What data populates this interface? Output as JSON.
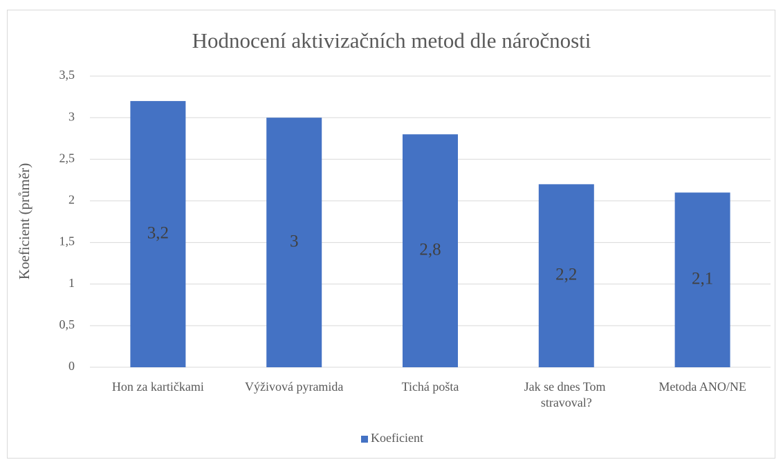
{
  "chart_data": {
    "type": "bar",
    "title": "Hodnocení aktivizačních metod dle náročnosti",
    "y_label": "Koeficient (průměr)",
    "categories": [
      "Hon za kartičkami",
      "Výživová pyramida",
      "Tichá pošta",
      "Jak se dnes Tom stravoval?",
      "Metoda ANO/NE"
    ],
    "series": [
      {
        "name": "Koeficient",
        "color": "#4472c4",
        "values": [
          3.2,
          3,
          2.8,
          2.2,
          2.1
        ],
        "value_labels": [
          "3,2",
          "3",
          "2,8",
          "2,2",
          "2,1"
        ]
      }
    ],
    "ylim": [
      0,
      3.5
    ],
    "yticks": [
      0,
      {
        "value": 0.5,
        "label": "0,5"
      },
      1,
      {
        "value": 1.5,
        "label": "1,5"
      },
      2,
      {
        "value": 2.5,
        "label": "2,5"
      },
      3,
      {
        "value": 3.5,
        "label": "3,5"
      }
    ],
    "grid": true,
    "legend": "bottom"
  }
}
